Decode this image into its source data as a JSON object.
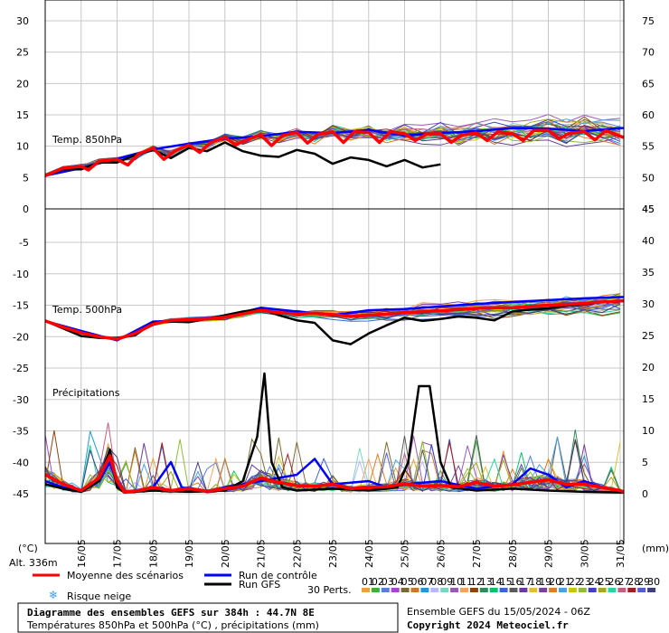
{
  "chart_data": {
    "type": "line",
    "title": "Diagramme des ensembles GEFS sur 384h : 44.7N 8E",
    "subtitle": "Températures 850hPa et 500hPa (°C) , précipitations (mm)",
    "run_info": "Ensemble GEFS du 15/05/2024 - 06Z",
    "copyright": "Copyright 2024 Meteociel.fr",
    "altitude": "Alt. 336m",
    "left_unit": "(°C)",
    "right_unit": "(mm)",
    "x_dates": [
      "16/05",
      "17/05",
      "18/05",
      "19/05",
      "20/05",
      "21/05",
      "22/05",
      "23/05",
      "24/05",
      "25/05",
      "26/05",
      "27/05",
      "28/05",
      "29/05",
      "30/05",
      "31/05"
    ],
    "panels": [
      {
        "label": "Temp. 850hPa",
        "left_ticks": [
          "30",
          "25",
          "20",
          "15",
          "10",
          "5",
          "0"
        ],
        "right_ticks": [
          "75",
          "70",
          "65",
          "60",
          "55",
          "50",
          "45"
        ],
        "mean": [
          [
            15.0,
            5.3
          ],
          [
            15.5,
            6.5
          ],
          [
            16.0,
            6.8
          ],
          [
            16.2,
            6.2
          ],
          [
            16.5,
            7.6
          ],
          [
            17.0,
            7.9
          ],
          [
            17.3,
            7.0
          ],
          [
            17.6,
            8.8
          ],
          [
            18.0,
            9.7
          ],
          [
            18.3,
            7.9
          ],
          [
            18.6,
            9.2
          ],
          [
            19.0,
            10.2
          ],
          [
            19.3,
            9.0
          ],
          [
            19.6,
            10.6
          ],
          [
            20.0,
            11.4
          ],
          [
            20.3,
            10.2
          ],
          [
            20.6,
            11.0
          ],
          [
            21.0,
            11.8
          ],
          [
            21.3,
            10.1
          ],
          [
            21.6,
            11.7
          ],
          [
            22.0,
            12.2
          ],
          [
            22.3,
            10.5
          ],
          [
            22.6,
            11.9
          ],
          [
            23.0,
            12.3
          ],
          [
            23.3,
            10.6
          ],
          [
            23.6,
            12.3
          ],
          [
            24.0,
            12.2
          ],
          [
            24.3,
            10.6
          ],
          [
            24.6,
            12.3
          ],
          [
            25.0,
            12.0
          ],
          [
            25.3,
            10.9
          ],
          [
            25.6,
            11.9
          ],
          [
            26.0,
            12.0
          ],
          [
            26.3,
            10.6
          ],
          [
            26.6,
            11.8
          ],
          [
            27.0,
            12.1
          ],
          [
            27.3,
            10.9
          ],
          [
            27.6,
            12.3
          ],
          [
            28.0,
            12.0
          ],
          [
            28.3,
            10.9
          ],
          [
            28.6,
            12.5
          ],
          [
            29.0,
            12.5
          ],
          [
            29.3,
            11.2
          ],
          [
            29.6,
            12.1
          ],
          [
            30.0,
            12.3
          ],
          [
            30.3,
            11.0
          ],
          [
            30.6,
            12.5
          ],
          [
            31.0,
            11.6
          ],
          [
            31.1,
            11.4
          ]
        ],
        "control": [
          [
            15.0,
            5.3
          ],
          [
            16.0,
            6.5
          ],
          [
            17.0,
            8.0
          ],
          [
            18.0,
            9.5
          ],
          [
            19.0,
            10.4
          ],
          [
            20.0,
            11.2
          ],
          [
            21.0,
            11.6
          ],
          [
            22.0,
            12.3
          ],
          [
            23.0,
            12.1
          ],
          [
            24.0,
            12.6
          ],
          [
            25.0,
            11.7
          ],
          [
            26.0,
            12.1
          ],
          [
            27.0,
            12.4
          ],
          [
            28.0,
            12.9
          ],
          [
            29.0,
            12.8
          ],
          [
            30.0,
            12.4
          ],
          [
            31.0,
            12.9
          ],
          [
            31.1,
            12.9
          ]
        ],
        "gfs": [
          [
            15.0,
            5.3
          ],
          [
            15.5,
            6.3
          ],
          [
            16.0,
            6.3
          ],
          [
            16.5,
            7.4
          ],
          [
            17.0,
            7.4
          ],
          [
            17.5,
            8.6
          ],
          [
            18.0,
            9.4
          ],
          [
            18.5,
            8.1
          ],
          [
            19.0,
            9.7
          ],
          [
            19.5,
            9.2
          ],
          [
            20.0,
            10.6
          ],
          [
            20.5,
            9.2
          ],
          [
            21.0,
            8.5
          ],
          [
            21.5,
            8.3
          ],
          [
            22.0,
            9.4
          ],
          [
            22.5,
            8.8
          ],
          [
            23.0,
            7.2
          ],
          [
            23.5,
            8.2
          ],
          [
            24.0,
            7.8
          ],
          [
            24.5,
            6.8
          ],
          [
            25.0,
            7.8
          ],
          [
            25.5,
            6.6
          ],
          [
            26.0,
            7.1
          ]
        ]
      },
      {
        "label": "Temp. 500hPa",
        "left_ticks": [
          "-5",
          "-10",
          "-15",
          "-20",
          "-25",
          "-30",
          "-35",
          "-40",
          "-45"
        ],
        "right_ticks": [
          "45",
          "40",
          "35",
          "30",
          "25",
          "20",
          "15",
          "10",
          "5",
          "0"
        ],
        "mean": [
          [
            15.0,
            -17.5
          ],
          [
            15.5,
            -18.5
          ],
          [
            16.0,
            -19.4
          ],
          [
            16.5,
            -20.0
          ],
          [
            17.0,
            -20.4
          ],
          [
            17.5,
            -19.5
          ],
          [
            18.0,
            -18.0
          ],
          [
            18.5,
            -17.4
          ],
          [
            19.0,
            -17.3
          ],
          [
            19.5,
            -17.2
          ],
          [
            20.0,
            -16.9
          ],
          [
            20.5,
            -16.4
          ],
          [
            21.0,
            -15.8
          ],
          [
            21.5,
            -16.2
          ],
          [
            22.0,
            -16.4
          ],
          [
            22.5,
            -16.3
          ],
          [
            23.0,
            -16.5
          ],
          [
            23.5,
            -16.8
          ],
          [
            24.0,
            -16.6
          ],
          [
            24.5,
            -16.4
          ],
          [
            25.0,
            -16.2
          ],
          [
            25.5,
            -16.0
          ],
          [
            26.0,
            -15.9
          ],
          [
            26.5,
            -15.7
          ],
          [
            27.0,
            -15.5
          ],
          [
            27.5,
            -15.4
          ],
          [
            28.0,
            -15.4
          ],
          [
            28.5,
            -15.2
          ],
          [
            29.0,
            -15.0
          ],
          [
            29.5,
            -14.9
          ],
          [
            30.0,
            -14.7
          ],
          [
            30.5,
            -14.5
          ],
          [
            31.0,
            -14.3
          ],
          [
            31.1,
            -14.3
          ]
        ],
        "control": [
          [
            15.0,
            -17.5
          ],
          [
            16.0,
            -19.1
          ],
          [
            17.0,
            -20.6
          ],
          [
            18.0,
            -17.6
          ],
          [
            19.0,
            -17.4
          ],
          [
            20.0,
            -16.8
          ],
          [
            21.0,
            -15.4
          ],
          [
            22.0,
            -16.0
          ],
          [
            23.0,
            -16.6
          ],
          [
            24.0,
            -15.8
          ],
          [
            25.0,
            -15.6
          ],
          [
            26.0,
            -15.2
          ],
          [
            27.0,
            -14.8
          ],
          [
            28.0,
            -14.5
          ],
          [
            29.0,
            -14.2
          ],
          [
            30.0,
            -13.9
          ],
          [
            31.0,
            -13.7
          ],
          [
            31.1,
            -13.7
          ]
        ],
        "gfs": [
          [
            15.0,
            -17.5
          ],
          [
            15.5,
            -18.7
          ],
          [
            16.0,
            -19.9
          ],
          [
            16.5,
            -20.2
          ],
          [
            17.0,
            -20.2
          ],
          [
            17.5,
            -19.8
          ],
          [
            18.0,
            -17.8
          ],
          [
            18.5,
            -17.6
          ],
          [
            19.0,
            -17.7
          ],
          [
            19.5,
            -17.2
          ],
          [
            20.0,
            -16.6
          ],
          [
            20.5,
            -16.0
          ],
          [
            21.0,
            -15.6
          ],
          [
            21.5,
            -16.6
          ],
          [
            22.0,
            -17.4
          ],
          [
            22.5,
            -17.8
          ],
          [
            23.0,
            -20.6
          ],
          [
            23.5,
            -21.2
          ],
          [
            24.0,
            -19.5
          ],
          [
            24.5,
            -18.2
          ],
          [
            25.0,
            -17.0
          ],
          [
            25.5,
            -17.5
          ],
          [
            26.0,
            -17.2
          ],
          [
            26.5,
            -16.8
          ],
          [
            27.0,
            -17.0
          ],
          [
            27.5,
            -17.4
          ],
          [
            28.0,
            -16.0
          ],
          [
            28.5,
            -15.7
          ],
          [
            29.0,
            -15.5
          ],
          [
            29.5,
            -15.1
          ],
          [
            30.0,
            -14.9
          ],
          [
            30.5,
            -14.5
          ],
          [
            31.0,
            -14.4
          ],
          [
            31.1,
            -14.4
          ]
        ]
      },
      {
        "label": "Précipitations",
        "mean": [
          [
            15.0,
            3.0
          ],
          [
            15.5,
            1.5
          ],
          [
            16.0,
            0.5
          ],
          [
            16.5,
            2.5
          ],
          [
            16.8,
            6.0
          ],
          [
            17.0,
            2.0
          ],
          [
            17.2,
            0.3
          ],
          [
            17.6,
            0.5
          ],
          [
            18.0,
            1.0
          ],
          [
            18.5,
            0.5
          ],
          [
            19.0,
            0.8
          ],
          [
            19.5,
            0.4
          ],
          [
            20.0,
            0.8
          ],
          [
            20.5,
            1.2
          ],
          [
            21.0,
            2.5
          ],
          [
            21.5,
            1.8
          ],
          [
            22.0,
            1.3
          ],
          [
            22.5,
            1.2
          ],
          [
            23.0,
            1.5
          ],
          [
            23.5,
            0.8
          ],
          [
            24.0,
            1.0
          ],
          [
            24.5,
            1.1
          ],
          [
            25.0,
            1.6
          ],
          [
            25.5,
            1.2
          ],
          [
            26.0,
            1.3
          ],
          [
            26.5,
            1.1
          ],
          [
            27.0,
            1.8
          ],
          [
            27.5,
            1.2
          ],
          [
            28.0,
            1.4
          ],
          [
            28.5,
            1.8
          ],
          [
            29.0,
            2.2
          ],
          [
            29.5,
            1.5
          ],
          [
            30.0,
            1.5
          ],
          [
            30.5,
            1.0
          ],
          [
            31.0,
            0.5
          ],
          [
            31.1,
            0.3
          ]
        ],
        "control": [
          [
            15.0,
            2.0
          ],
          [
            15.5,
            1.0
          ],
          [
            16.0,
            0.3
          ],
          [
            16.5,
            2.0
          ],
          [
            16.8,
            5.0
          ],
          [
            17.0,
            1.5
          ],
          [
            17.2,
            0.2
          ],
          [
            18.0,
            1.0
          ],
          [
            18.5,
            5.0
          ],
          [
            18.8,
            1.0
          ],
          [
            19.5,
            0.3
          ],
          [
            20.0,
            1.0
          ],
          [
            21.0,
            2.0
          ],
          [
            22.0,
            3.0
          ],
          [
            22.5,
            5.5
          ],
          [
            23.0,
            1.5
          ],
          [
            24.0,
            2.0
          ],
          [
            24.5,
            1.0
          ],
          [
            25.0,
            1.5
          ],
          [
            26.0,
            2.0
          ],
          [
            27.0,
            0.8
          ],
          [
            28.0,
            1.5
          ],
          [
            28.5,
            4.0
          ],
          [
            29.0,
            3.0
          ],
          [
            29.5,
            1.0
          ],
          [
            30.0,
            2.0
          ],
          [
            30.5,
            1.0
          ],
          [
            31.0,
            0.5
          ],
          [
            31.1,
            0.3
          ]
        ],
        "gfs": [
          [
            15.0,
            1.5
          ],
          [
            15.5,
            0.8
          ],
          [
            16.0,
            0.3
          ],
          [
            16.5,
            2.0
          ],
          [
            16.8,
            7.0
          ],
          [
            17.0,
            1.0
          ],
          [
            17.2,
            0.2
          ],
          [
            18.0,
            0.5
          ],
          [
            19.0,
            0.3
          ],
          [
            20.0,
            0.5
          ],
          [
            20.5,
            2.0
          ],
          [
            20.9,
            9.0
          ],
          [
            21.1,
            19.0
          ],
          [
            21.3,
            5.0
          ],
          [
            21.6,
            1.0
          ],
          [
            22.0,
            0.5
          ],
          [
            23.0,
            0.8
          ],
          [
            24.0,
            0.5
          ],
          [
            24.8,
            1.0
          ],
          [
            25.1,
            5.0
          ],
          [
            25.4,
            17.0
          ],
          [
            25.7,
            17.0
          ],
          [
            26.0,
            5.0
          ],
          [
            26.3,
            1.0
          ],
          [
            27.0,
            0.5
          ],
          [
            28.0,
            0.8
          ],
          [
            29.0,
            0.5
          ],
          [
            30.0,
            0.3
          ],
          [
            31.0,
            0.2
          ],
          [
            31.1,
            0.2
          ]
        ]
      }
    ],
    "legend": [
      {
        "name": "Moyenne des scénarios",
        "color": "#ff0000"
      },
      {
        "name": "Run de contrôle",
        "color": "#0000ff"
      },
      {
        "name": "Run GFS",
        "color": "#000000"
      },
      {
        "name": "Risque neige",
        "color": "#39a0e8"
      }
    ],
    "perts_label": "30 Perts.",
    "perts": [
      "01",
      "02",
      "03",
      "04",
      "05",
      "06",
      "07",
      "08",
      "09",
      "10",
      "11",
      "12",
      "13",
      "14",
      "15",
      "16",
      "17",
      "18",
      "19",
      "20",
      "21",
      "22",
      "23",
      "24",
      "25",
      "26",
      "27",
      "28",
      "29",
      "30"
    ],
    "pert_colors": [
      "#e8a33a",
      "#3cb043",
      "#5b7fd6",
      "#a248c8",
      "#7a6a2f",
      "#c87a2a",
      "#1f9ad6",
      "#b9b8ff",
      "#7fd3c2",
      "#9b59b6",
      "#f4a460",
      "#8b4513",
      "#2e8b57",
      "#00c46a",
      "#3a64d8",
      "#5a5a5a",
      "#6a3d9a",
      "#e0c030",
      "#7b3fa0",
      "#d97f26",
      "#4aa3df",
      "#c8c800",
      "#8fbc3a",
      "#4040c0",
      "#a8a820",
      "#2ad4a0",
      "#c06080",
      "#a02020",
      "#5060d0",
      "#404080"
    ]
  }
}
